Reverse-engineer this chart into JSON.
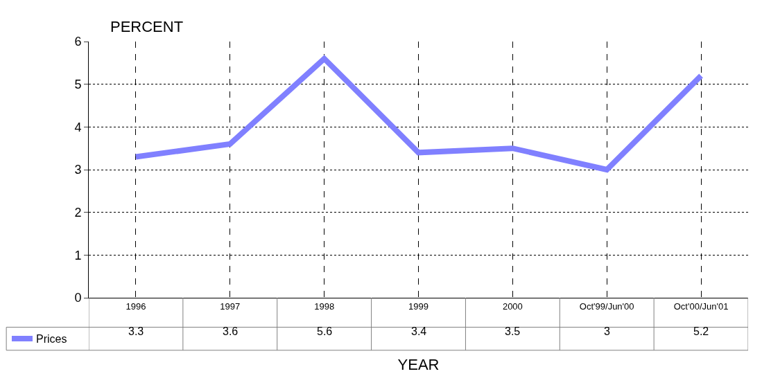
{
  "chart_data": {
    "type": "line",
    "ylabel": "PERCENT",
    "xlabel": "YEAR",
    "categories": [
      "1996",
      "1997",
      "1998",
      "1999",
      "2000",
      "Oct'99/Jun'00",
      "Oct'00/Jun'01"
    ],
    "series": [
      {
        "name": "Prices",
        "color": "#8080ff",
        "values": [
          3.3,
          3.6,
          5.6,
          3.4,
          3.5,
          3,
          5.2
        ]
      }
    ],
    "ylim": [
      0,
      6
    ],
    "yticks": [
      0,
      1,
      2,
      3,
      4,
      5,
      6
    ],
    "grid": true,
    "legend": "bottom left",
    "data_labels": true,
    "marker": "none",
    "line_style": "solid"
  }
}
